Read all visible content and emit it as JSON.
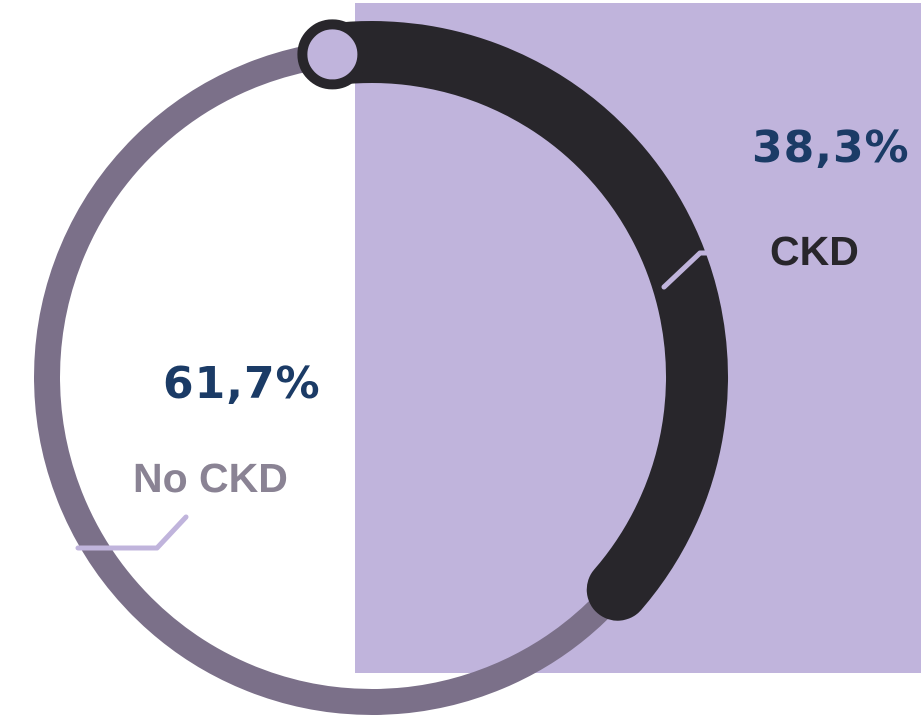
{
  "colors": {
    "panel": "#c0b4dc",
    "track": "#7b7089",
    "ckd_arc": "#28262b",
    "percent_text": "#1b3b66",
    "ckd_label": "#28262b",
    "no_ckd_label": "#8a8394",
    "leader_line": "#c0b4dc",
    "knob_fill": "#c0b4dc",
    "knob_stroke": "#28262b"
  },
  "chart_data": {
    "type": "pie",
    "style": "donut",
    "categories": [
      "CKD",
      "No CKD"
    ],
    "values": [
      38.3,
      61.7
    ],
    "value_labels": [
      "38,3%",
      "61,7%"
    ],
    "title": "",
    "legend": "none"
  }
}
